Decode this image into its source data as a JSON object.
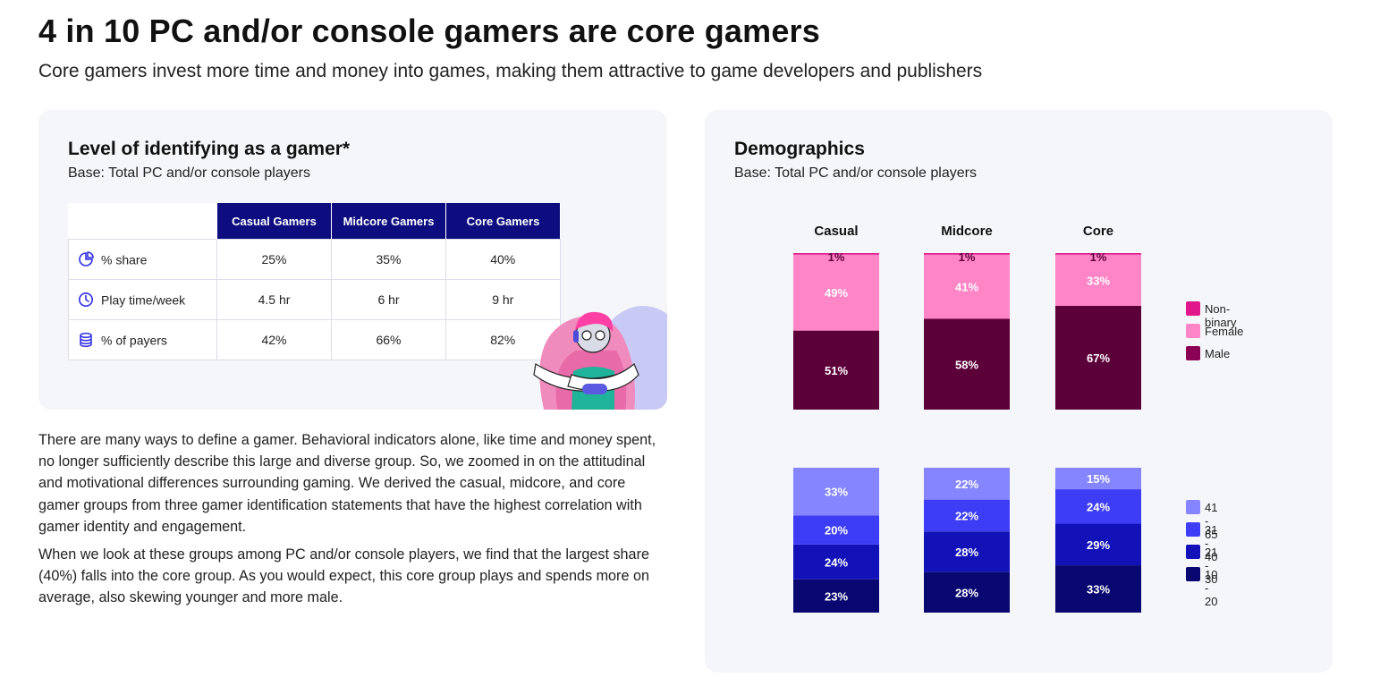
{
  "header": {
    "title": "4 in 10 PC and/or console gamers are core gamers",
    "subtitle": "Core gamers invest more time and money into games, making them attractive to game developers and publishers"
  },
  "left_card": {
    "title": "Level of identifying as a gamer*",
    "base": "Base: Total PC and/or console players",
    "table": {
      "columns": [
        "Casual Gamers",
        "Midcore Gamers",
        "Core Gamers"
      ],
      "rows": [
        {
          "icon": "pie-chart-icon",
          "label": "% share",
          "values": [
            "25%",
            "35%",
            "40%"
          ]
        },
        {
          "icon": "clock-icon",
          "label": "Play time/week",
          "values": [
            "4.5 hr",
            "6 hr",
            "9 hr"
          ]
        },
        {
          "icon": "coins-icon",
          "label": "% of payers",
          "values": [
            "42%",
            "66%",
            "82%"
          ]
        }
      ]
    }
  },
  "body": {
    "paragraph1": "There are many ways to define a gamer. Behavioral indicators alone, like time and money spent, no longer sufficiently describe this large and diverse group. So, we zoomed in on the attitudinal and motivational differences surrounding gaming. We derived the casual, midcore, and core gamer groups from three gamer identification statements that have the highest correlation with gamer identity and engagement.",
    "paragraph2": "When we look at these groups among PC and/or console players, we find that the largest share (40%) falls into the core group. As you would expect, this core group plays and spends more on average, also skewing younger and more male."
  },
  "right_card": {
    "title": "Demographics",
    "base": "Base: Total PC and/or console players"
  },
  "chart_data": [
    {
      "type": "bar",
      "stacked": true,
      "categories": [
        "Casual",
        "Midcore",
        "Core"
      ],
      "series": [
        {
          "name": "Male",
          "values": [
            51,
            58,
            67
          ],
          "labels": [
            "51%",
            "58%",
            "67%"
          ],
          "color": "#5c0039"
        },
        {
          "name": "Female",
          "values": [
            49,
            41,
            33
          ],
          "labels": [
            "49%",
            "41%",
            "33%"
          ],
          "color": "#ff85c6"
        },
        {
          "name": "Non-binary",
          "values": [
            1,
            1,
            1
          ],
          "labels": [
            "1%",
            "1%",
            "1%"
          ],
          "color": "#e0188c"
        }
      ],
      "legend": "right"
    },
    {
      "type": "bar",
      "stacked": true,
      "categories": [
        "Casual",
        "Midcore",
        "Core"
      ],
      "series": [
        {
          "name": "10 - 20",
          "values": [
            23,
            28,
            33
          ],
          "labels": [
            "23%",
            "28%",
            "33%"
          ],
          "color": "#080870"
        },
        {
          "name": "21 - 30",
          "values": [
            24,
            28,
            29
          ],
          "labels": [
            "24%",
            "28%",
            "29%"
          ],
          "color": "#1212b8"
        },
        {
          "name": "31 - 40",
          "values": [
            20,
            22,
            24
          ],
          "labels": [
            "20%",
            "22%",
            "24%"
          ],
          "color": "#3d3df5"
        },
        {
          "name": "41 - 65",
          "values": [
            33,
            22,
            15
          ],
          "labels": [
            "33%",
            "22%",
            "15%"
          ],
          "color": "#8585ff"
        }
      ],
      "legend": "right"
    }
  ]
}
